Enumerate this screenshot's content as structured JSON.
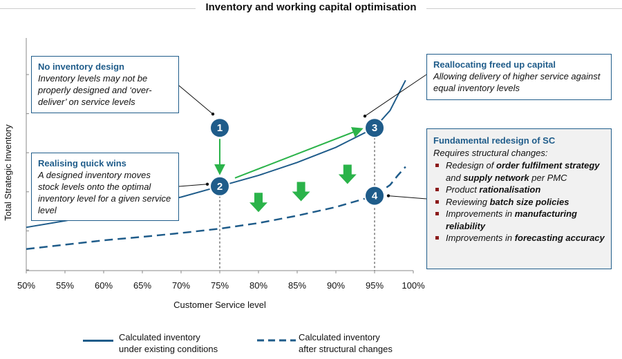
{
  "title": "Inventory and working capital optimisation",
  "callouts": {
    "no_design": {
      "head": "No inventory design",
      "body": "Inventory levels may not be properly designed and ‘over-deliver’ on service levels"
    },
    "quick_wins": {
      "head": "Realising quick wins",
      "body": "A designed inventory moves stock levels onto the optimal inventory level for a given service level"
    },
    "reallocating": {
      "head": "Reallocating freed up capital",
      "body": "Allowing delivery of higher service against equal inventory levels"
    },
    "redesign": {
      "head": "Fundamental redesign of SC",
      "intro": "Requires structural changes:",
      "items": [
        "Redesign of order fulfilment strategy and supply network per PMC",
        "Product rationalisation",
        "Reviewing batch size policies",
        "Improvements in manufacturing reliability",
        "Improvements in forecasting accuracy"
      ]
    }
  },
  "markers": [
    "1",
    "2",
    "3",
    "4"
  ],
  "legend": {
    "existing": "Calculated inventory\nunder existing conditions",
    "after": "Calculated inventory\nafter structural changes"
  },
  "colors": {
    "series": "#1f5c8a",
    "arrows": "#2bb34a",
    "bullet": "#8b1a1a"
  },
  "chart_data": {
    "type": "line",
    "xlabel": "Customer Service level",
    "ylabel": "Total Strategic Inventory",
    "xlim": [
      50,
      100
    ],
    "x_ticks": [
      "50%",
      "55%",
      "60%",
      "65%",
      "70%",
      "75%",
      "80%",
      "85%",
      "90%",
      "95%",
      "100%"
    ],
    "y_ticks_labeled": false,
    "series": [
      {
        "name": "Calculated inventory under existing conditions",
        "style": "solid",
        "x": [
          50,
          55,
          60,
          65,
          70,
          75,
          80,
          85,
          90,
          95,
          97,
          98,
          99
        ],
        "y": [
          1.0,
          1.15,
          1.33,
          1.52,
          1.7,
          1.95,
          2.2,
          2.5,
          2.85,
          3.3,
          3.7,
          4.05,
          4.4
        ]
      },
      {
        "name": "Calculated inventory after structural changes",
        "style": "dashed",
        "x": [
          50,
          55,
          60,
          65,
          70,
          75,
          80,
          85,
          90,
          95,
          97,
          98,
          99
        ],
        "y": [
          0.5,
          0.6,
          0.7,
          0.78,
          0.87,
          0.97,
          1.1,
          1.27,
          1.47,
          1.73,
          1.98,
          2.2,
          2.4
        ]
      }
    ],
    "points": [
      {
        "label": "1",
        "x": 75,
        "y": 3.3
      },
      {
        "label": "2",
        "x": 75,
        "y": 1.95
      },
      {
        "label": "3",
        "x": 95,
        "y": 3.3
      },
      {
        "label": "4",
        "x": 95,
        "y": 1.73
      }
    ]
  }
}
